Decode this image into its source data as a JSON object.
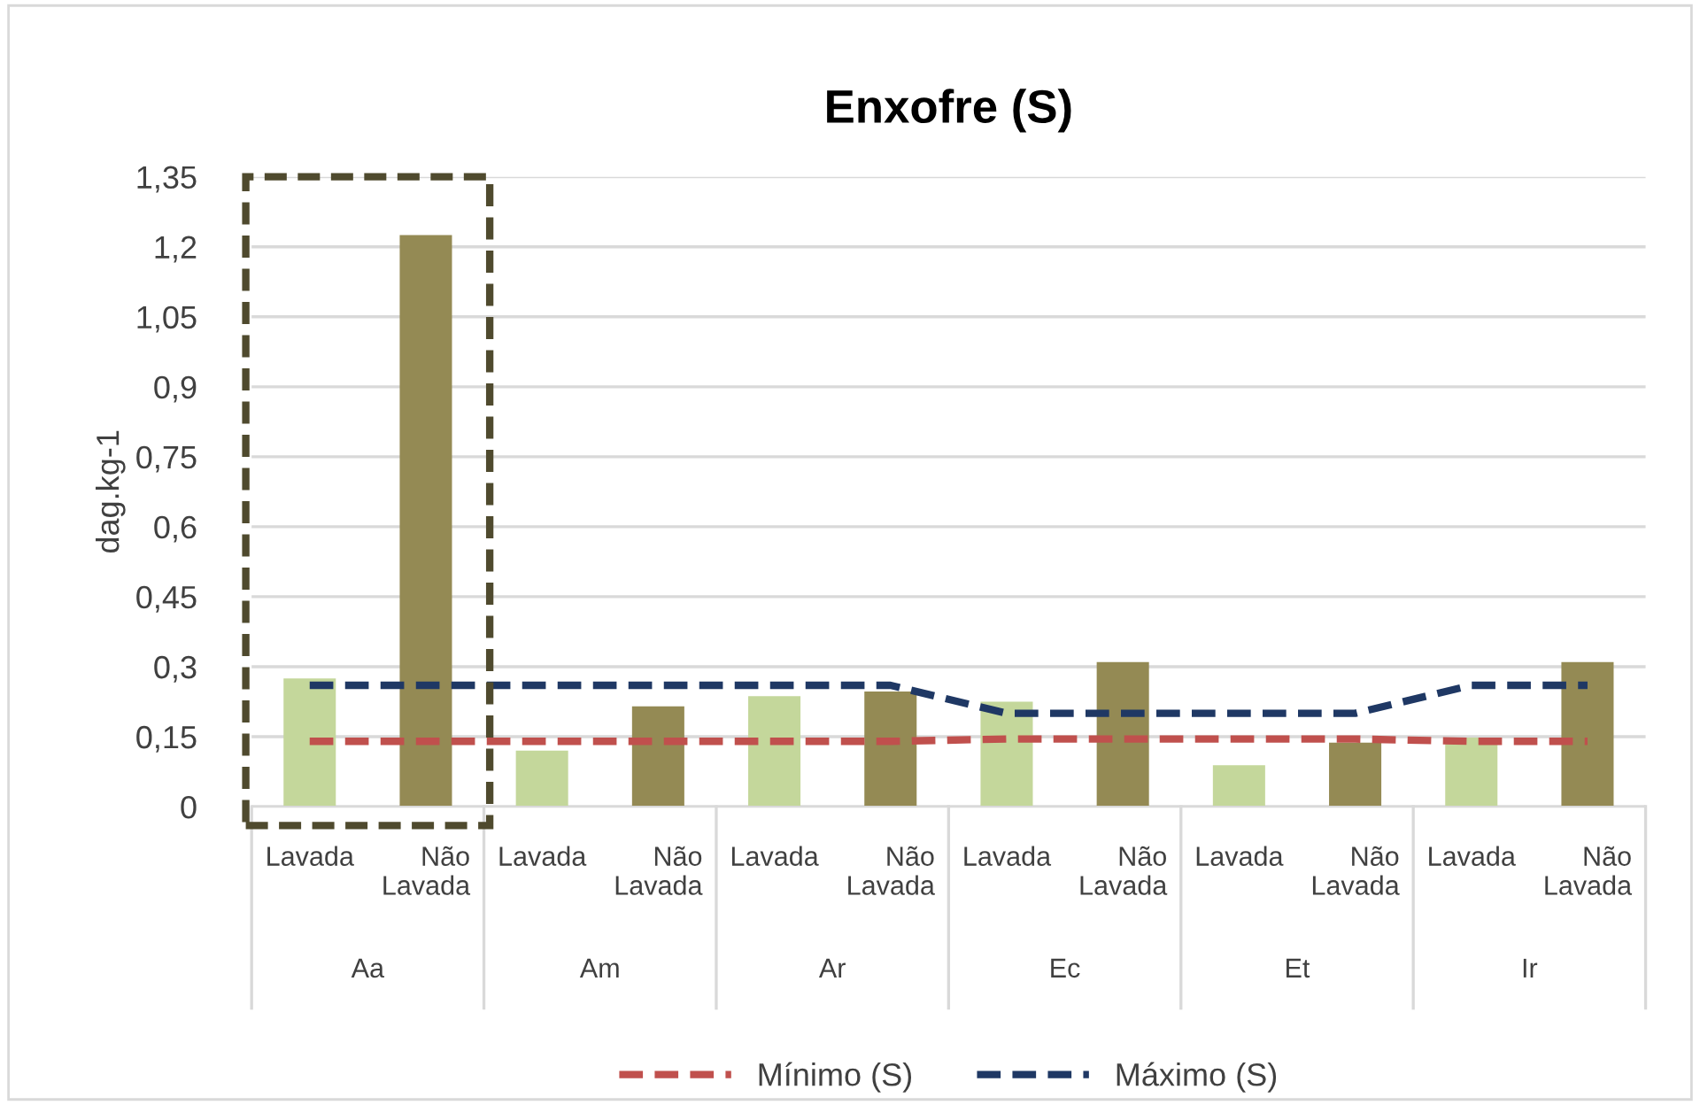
{
  "chart_data": {
    "type": "bar",
    "title": "Enxofre (S)",
    "ylabel": "dag.kg-1",
    "categories": [
      "Lavada",
      "Não Lavada",
      "Lavada",
      "Não Lavada",
      "Lavada",
      "Não Lavada",
      "Lavada",
      "Não Lavada",
      "Lavada",
      "Não Lavada",
      "Lavada",
      "Não Lavada"
    ],
    "series": [
      {
        "colors": [
          "#c4d79b",
          "#948a54",
          "#c4d79b",
          "#948a54",
          "#c4d79b",
          "#948a54",
          "#c4d79b",
          "#948a54",
          "#c4d79b",
          "#948a54",
          "#c4d79b",
          "#948a54"
        ],
        "values": [
          0.275,
          1.225,
          0.12,
          0.215,
          0.237,
          0.247,
          0.225,
          0.31,
          0.089,
          0.137,
          0.148,
          0.31
        ]
      },
      {
        "type": "line",
        "name": "Mínimo (S)",
        "color": "#c0504d",
        "line_style": "dashed",
        "values": [
          0.14,
          0.14,
          0.14,
          0.14,
          0.14,
          0.14,
          0.145,
          0.145,
          0.145,
          0.145,
          0.14,
          0.14
        ]
      },
      {
        "type": "line",
        "name": "Máximo (S)",
        "color": "#1f3864",
        "line_style": "dashed",
        "values": [
          0.26,
          0.26,
          0.26,
          0.26,
          0.26,
          0.26,
          0.2,
          0.2,
          0.2,
          0.2,
          0.26,
          0.26
        ]
      }
    ],
    "annotations": [
      "Aa",
      "Am",
      "Ar",
      "Ec",
      "Et",
      "Ir"
    ],
    "ylim": [
      0,
      1.35
    ],
    "yticks": [
      {
        "value": 0,
        "label": "0"
      },
      {
        "value": 0.15,
        "label": "0,15"
      },
      {
        "value": 0.3,
        "label": "0,3"
      },
      {
        "value": 0.45,
        "label": "0,45"
      },
      {
        "value": 0.6,
        "label": "0,6"
      },
      {
        "value": 0.75,
        "label": "0,75"
      },
      {
        "value": 0.9,
        "label": "0,9"
      },
      {
        "value": 1.05,
        "label": "1,05"
      },
      {
        "value": 1.2,
        "label": "1,2"
      },
      {
        "value": 1.35,
        "label": "1,35"
      }
    ],
    "grid": "y",
    "legend": "bottom"
  }
}
